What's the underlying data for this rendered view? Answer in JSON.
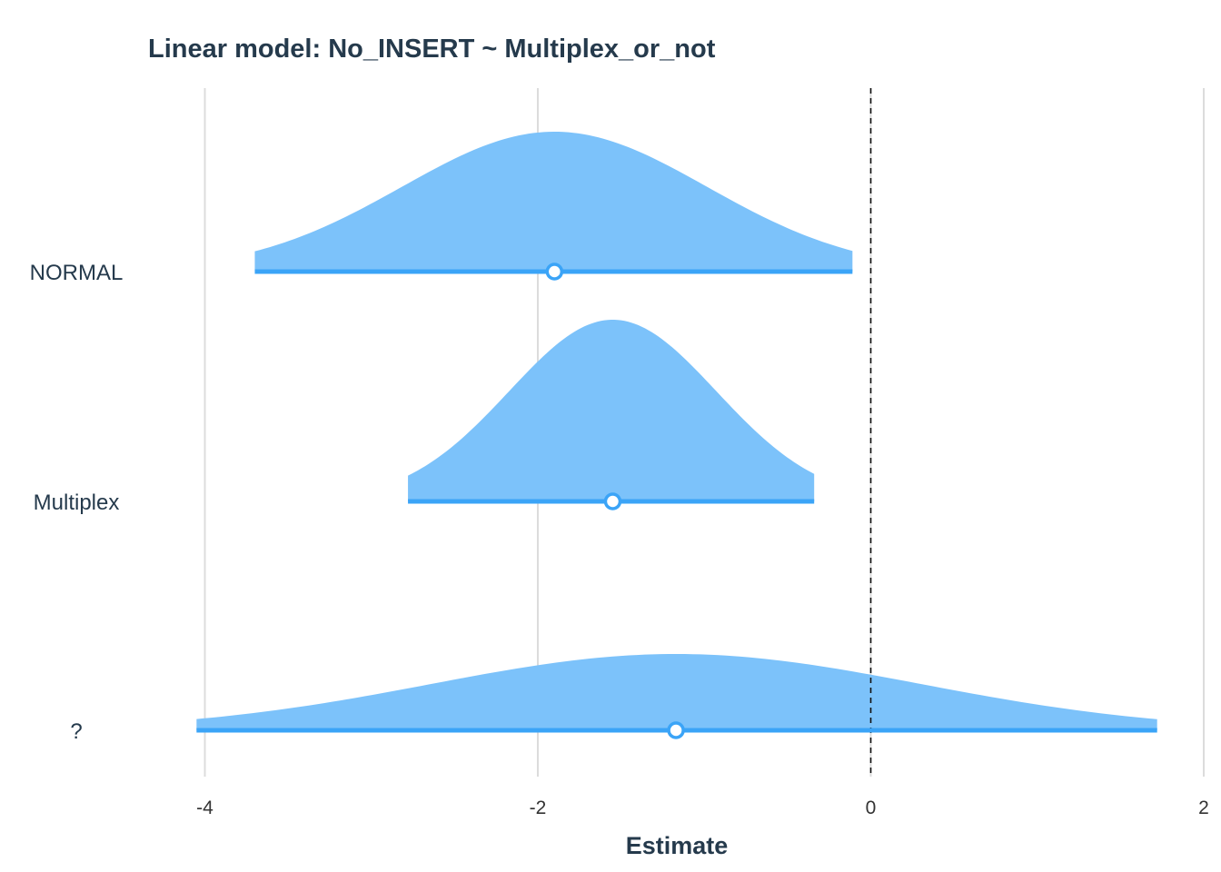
{
  "chart_data": {
    "type": "density-interval",
    "title": "Linear model: No_INSERT ~ Multiplex_or_not",
    "xlabel": "Estimate",
    "ylabel": "",
    "xlim": [
      -4,
      2
    ],
    "xticks": [
      "-4",
      "-2",
      "0",
      "2"
    ],
    "x_tick_values": [
      -4,
      -2,
      0,
      2
    ],
    "reference_line": 0,
    "fill_color": "#79c1fa",
    "line_color": "#3ba4f7",
    "categories": [
      "NORMAL",
      "Multiplex",
      "?"
    ],
    "estimates": [
      {
        "label": "NORMAL",
        "estimate": -1.9,
        "low": -3.7,
        "high": -0.11,
        "peak": 0.77
      },
      {
        "label": "Multiplex",
        "estimate": -1.55,
        "low": -2.78,
        "high": -0.34,
        "peak": 1.0
      },
      {
        "label": "?",
        "estimate": -1.17,
        "low": -4.05,
        "high": 1.72,
        "peak": 0.42
      }
    ],
    "grid": true
  }
}
